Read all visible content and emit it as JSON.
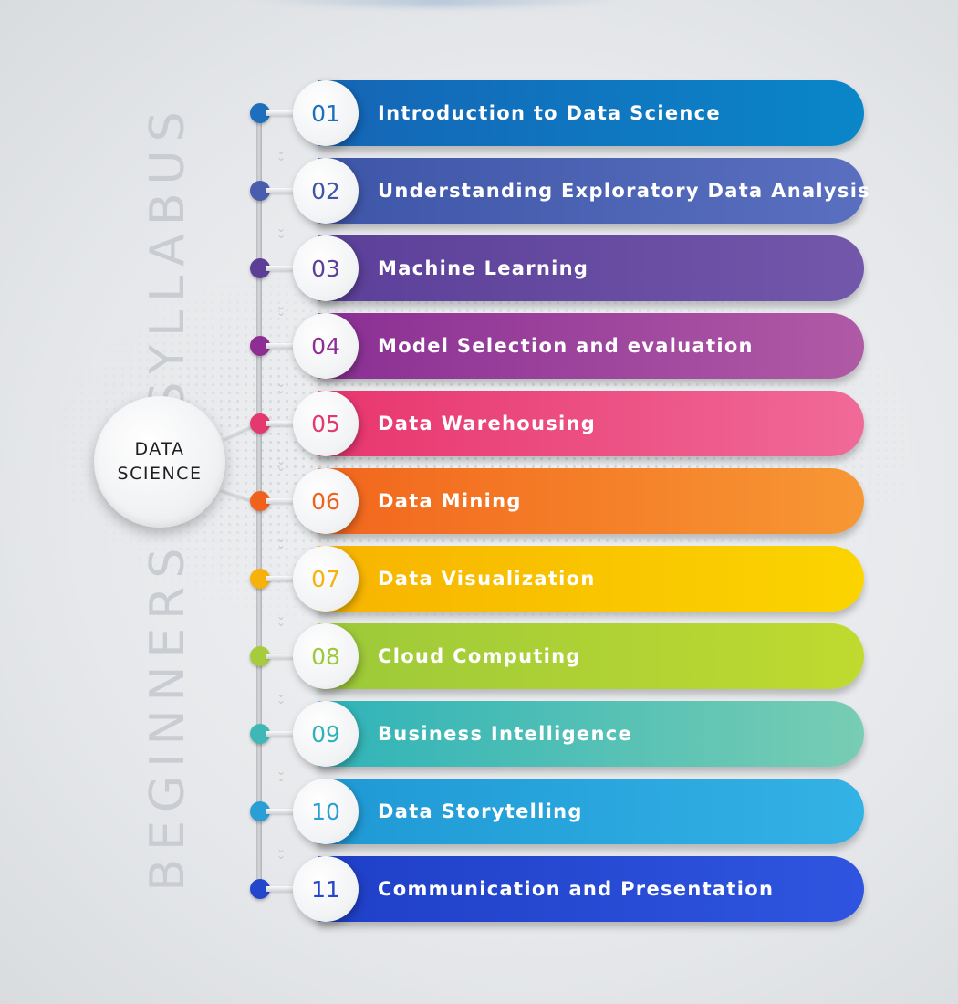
{
  "vertical_title": {
    "part1": "BEGINNERS",
    "part2": "SYLLABUS"
  },
  "hub": {
    "line1": "DATA",
    "line2": "SCIENCE"
  },
  "items": [
    {
      "number": "01",
      "label": "Introduction to Data Science",
      "color_start": "#1565b5",
      "color_end": "#0a86c9",
      "dot_color": "#1d6fbd",
      "number_color": "#1f6fbf"
    },
    {
      "number": "02",
      "label": "Understanding Exploratory Data Analysis",
      "color_start": "#3e56a8",
      "color_end": "#5a6fbf",
      "dot_color": "#4a5cad",
      "number_color": "#3f56a8"
    },
    {
      "number": "03",
      "label": "Machine Learning",
      "color_start": "#5b3f99",
      "color_end": "#7257aa",
      "dot_color": "#5c3e96",
      "number_color": "#5b3f99"
    },
    {
      "number": "04",
      "label": "Model Selection and evaluation",
      "color_start": "#8a2f94",
      "color_end": "#b05aa6",
      "dot_color": "#8e2d93",
      "number_color": "#8e2d93"
    },
    {
      "number": "05",
      "label": "Data Warehousing",
      "color_start": "#e8356e",
      "color_end": "#f06a98",
      "dot_color": "#e4396f",
      "number_color": "#e4396f"
    },
    {
      "number": "06",
      "label": "Data Mining",
      "color_start": "#f2661d",
      "color_end": "#f79734",
      "dot_color": "#f0611e",
      "number_color": "#f0611e"
    },
    {
      "number": "07",
      "label": "Data Visualization",
      "color_start": "#f7b300",
      "color_end": "#fbd500",
      "dot_color": "#f6b20a",
      "number_color": "#f6b20a"
    },
    {
      "number": "08",
      "label": "Cloud Computing",
      "color_start": "#9cc93a",
      "color_end": "#c0da2f",
      "dot_color": "#a6cc3d",
      "number_color": "#9cc93a"
    },
    {
      "number": "09",
      "label": "Business Intelligence",
      "color_start": "#2fb3b8",
      "color_end": "#78cdb3",
      "dot_color": "#3fb7b6",
      "number_color": "#2fb3b8"
    },
    {
      "number": "10",
      "label": "Data Storytelling",
      "color_start": "#1f99d4",
      "color_end": "#33b2e6",
      "dot_color": "#2a9fd6",
      "number_color": "#2a9fd6"
    },
    {
      "number": "11",
      "label": "Communication and Presentation",
      "color_start": "#1f3fc7",
      "color_end": "#2f55e0",
      "dot_color": "#2346cc",
      "number_color": "#2346cc"
    }
  ]
}
